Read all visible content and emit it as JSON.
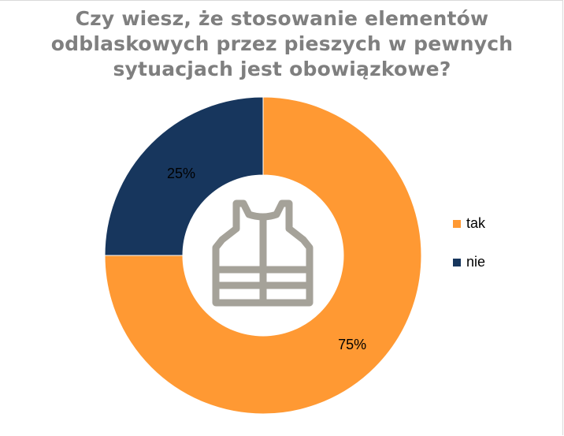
{
  "chart_data": {
    "type": "donut",
    "title_lines": [
      "Czy wiesz, że stosowanie elementów",
      "odblaskowych przez pieszych w pewnych",
      "sytuacjach jest obowiązkowe?"
    ],
    "categories": [
      "tak",
      "nie"
    ],
    "values": [
      75,
      25
    ],
    "data_labels": [
      "75%",
      "25%"
    ],
    "colors": [
      "#ff9933",
      "#17365d"
    ],
    "legend_position": "right",
    "center_icon": "safety-vest-icon"
  }
}
